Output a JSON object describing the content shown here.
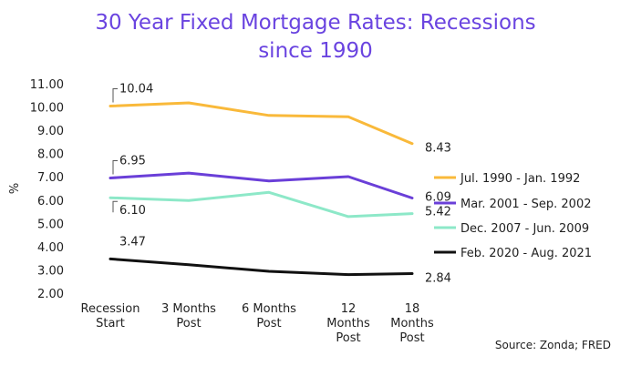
{
  "chart_data": {
    "type": "line",
    "title_line1": "30 Year Fixed Mortgage Rates: Recessions",
    "title_line2": "since 1990",
    "ylabel": "%",
    "ylim": [
      2,
      11
    ],
    "yticks": [
      "2.00",
      "3.00",
      "4.00",
      "5.00",
      "6.00",
      "7.00",
      "8.00",
      "9.00",
      "10.00",
      "11.00"
    ],
    "categories": [
      [
        "Recession",
        "Start"
      ],
      [
        "3 Months",
        "Post"
      ],
      [
        "6 Months",
        "Post"
      ],
      [
        "12",
        "Months",
        "Post"
      ],
      [
        "18",
        "Months",
        "Post"
      ]
    ],
    "series": [
      {
        "name": "Jul. 1990 - Jan. 1992",
        "color": "#f9b93a",
        "values": [
          10.04,
          10.18,
          9.64,
          9.58,
          8.43
        ],
        "start_label": "10.04",
        "end_label": "8.43"
      },
      {
        "name": "Mar. 2001 - Sep. 2002",
        "color": "#6a3fd8",
        "values": [
          6.95,
          7.16,
          6.82,
          7.01,
          6.09
        ],
        "start_label": "6.95",
        "end_label": "6.09"
      },
      {
        "name": "Dec. 2007 - Jun. 2009",
        "color": "#8de8c8",
        "values": [
          6.1,
          5.98,
          6.33,
          5.29,
          5.42
        ],
        "start_label": "6.10",
        "end_label": "5.42"
      },
      {
        "name": "Feb. 2020 - Aug. 2021",
        "color": "#111111",
        "values": [
          3.47,
          3.22,
          2.94,
          2.8,
          2.84
        ],
        "start_label": "3.47",
        "end_label": "2.84"
      }
    ],
    "legend_position": "right"
  },
  "source": "Source: Zonda; FRED"
}
